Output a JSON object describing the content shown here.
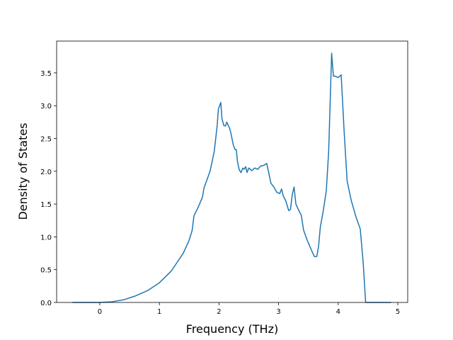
{
  "chart_data": {
    "type": "line",
    "xlabel": "Frequency (THz)",
    "ylabel": "Density of States",
    "series": [
      {
        "color": "#1f77b4",
        "x": [
          -0.46,
          0,
          0.2,
          0.4,
          0.6,
          0.8,
          1.0,
          1.2,
          1.4,
          1.5,
          1.55,
          1.58,
          1.65,
          1.72,
          1.75,
          1.85,
          1.92,
          1.97,
          1.99,
          2.03,
          2.05,
          2.08,
          2.11,
          2.13,
          2.18,
          2.2,
          2.24,
          2.27,
          2.29,
          2.31,
          2.34,
          2.37,
          2.4,
          2.42,
          2.45,
          2.47,
          2.5,
          2.55,
          2.6,
          2.65,
          2.7,
          2.75,
          2.8,
          2.83,
          2.87,
          2.92,
          2.97,
          3.02,
          3.05,
          3.08,
          3.12,
          3.17,
          3.2,
          3.23,
          3.26,
          3.29,
          3.33,
          3.38,
          3.42,
          3.48,
          3.55,
          3.6,
          3.64,
          3.67,
          3.7,
          3.75,
          3.8,
          3.84,
          3.87,
          3.89,
          3.92,
          3.95,
          4.0,
          4.05,
          4.1,
          4.15,
          4.22,
          4.3,
          4.37,
          4.42,
          4.46,
          4.89
        ],
        "values": [
          0,
          0,
          0.01,
          0.04,
          0.1,
          0.18,
          0.3,
          0.48,
          0.75,
          0.95,
          1.1,
          1.32,
          1.45,
          1.6,
          1.75,
          2.0,
          2.3,
          2.7,
          2.95,
          3.05,
          2.8,
          2.7,
          2.69,
          2.75,
          2.65,
          2.58,
          2.4,
          2.33,
          2.33,
          2.15,
          2.02,
          1.98,
          2.05,
          2.03,
          2.07,
          1.98,
          2.05,
          2.01,
          2.05,
          2.03,
          2.08,
          2.09,
          2.12,
          2.0,
          1.82,
          1.76,
          1.68,
          1.66,
          1.73,
          1.62,
          1.55,
          1.4,
          1.42,
          1.65,
          1.76,
          1.5,
          1.42,
          1.33,
          1.1,
          0.95,
          0.8,
          0.7,
          0.7,
          0.85,
          1.15,
          1.4,
          1.7,
          2.3,
          3.2,
          3.8,
          3.45,
          3.45,
          3.43,
          3.47,
          2.6,
          1.85,
          1.55,
          1.3,
          1.12,
          0.6,
          0,
          0
        ]
      }
    ],
    "xlim": [
      -0.724,
      5.166
    ],
    "ylim": [
      0,
      3.985
    ],
    "xticks": [
      0,
      1,
      2,
      3,
      4,
      5
    ],
    "yticks": [
      {
        "value": 0,
        "label": "0.0"
      },
      {
        "value": 0.5,
        "label": "0.5"
      },
      {
        "value": 1,
        "label": "1.0"
      },
      {
        "value": 1.5,
        "label": "1.5"
      },
      {
        "value": 2,
        "label": "2.0"
      },
      {
        "value": 2.5,
        "label": "2.5"
      },
      {
        "value": 3,
        "label": "3.0"
      },
      {
        "value": 3.5,
        "label": "3.5"
      }
    ]
  }
}
